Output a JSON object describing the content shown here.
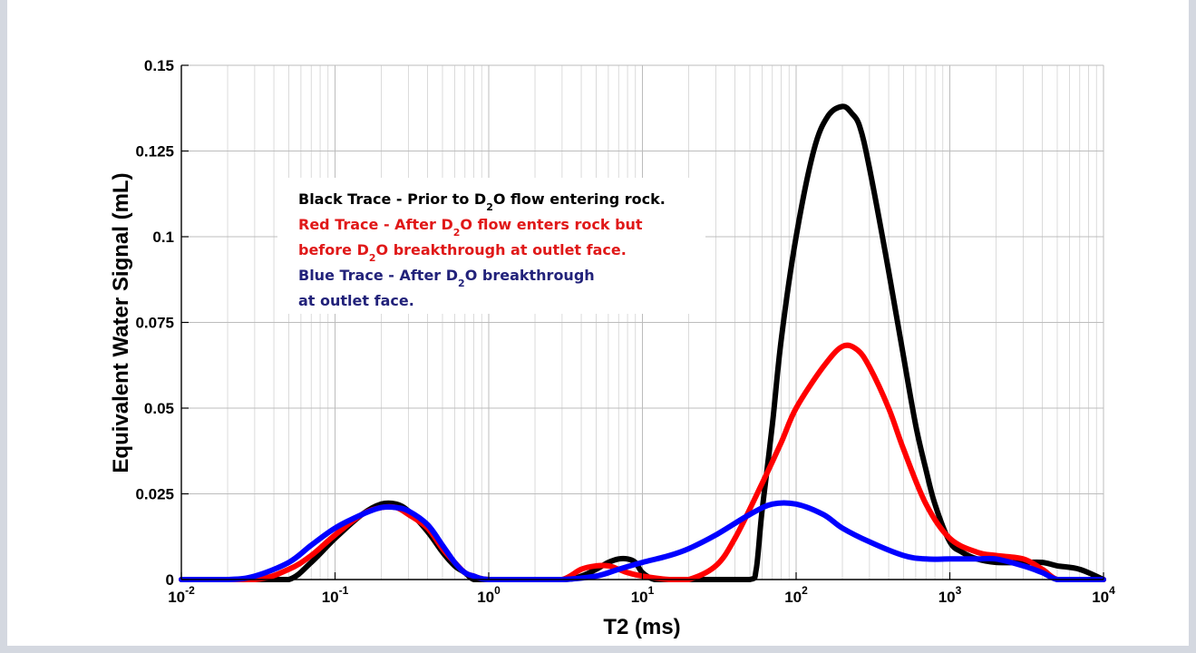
{
  "chart_data": {
    "type": "line",
    "title": "",
    "xlabel": "T2 (ms)",
    "ylabel": "Equivalent Water Signal (mL)",
    "xscale": "log",
    "xlim": [
      0.01,
      10000
    ],
    "ylim": [
      0,
      0.15
    ],
    "grid": true,
    "y_ticks": [
      {
        "value": 0,
        "label": "0"
      },
      {
        "value": 0.025,
        "label": "0.025"
      },
      {
        "value": 0.05,
        "label": "0.05"
      },
      {
        "value": 0.075,
        "label": "0.075"
      },
      {
        "value": 0.1,
        "label": "0.1"
      },
      {
        "value": 0.125,
        "label": "0.125"
      },
      {
        "value": 0.15,
        "label": "0.15"
      }
    ],
    "x_ticks": [
      {
        "value": 0.01,
        "base": "10",
        "exp": "-2"
      },
      {
        "value": 0.1,
        "base": "10",
        "exp": "-1"
      },
      {
        "value": 1,
        "base": "10",
        "exp": "0"
      },
      {
        "value": 10,
        "base": "10",
        "exp": "1"
      },
      {
        "value": 100,
        "base": "10",
        "exp": "2"
      },
      {
        "value": 1000,
        "base": "10",
        "exp": "3"
      },
      {
        "value": 10000,
        "base": "10",
        "exp": "4"
      }
    ],
    "legend": {
      "placement": "upper-left",
      "lines": [
        {
          "color": "#000000",
          "segments": [
            {
              "text": "Black Trace - Prior to D"
            },
            {
              "text": "2",
              "sub": true
            },
            {
              "text": "O flow entering rock."
            }
          ]
        },
        {
          "color": "#e01818",
          "segments": [
            {
              "text": "Red Trace - After D"
            },
            {
              "text": "2",
              "sub": true
            },
            {
              "text": "O flow enters rock but"
            }
          ]
        },
        {
          "color": "#e01818",
          "segments": [
            {
              "text": "before D"
            },
            {
              "text": "2",
              "sub": true
            },
            {
              "text": "O breakthrough at outlet face."
            }
          ]
        },
        {
          "color": "#22227a",
          "segments": [
            {
              "text": "Blue Trace - After D"
            },
            {
              "text": "2",
              "sub": true
            },
            {
              "text": "O breakthrough"
            }
          ]
        },
        {
          "color": "#22227a",
          "segments": [
            {
              "text": "at outlet face."
            }
          ]
        }
      ]
    },
    "series": [
      {
        "color": "#000000",
        "x": [
          0.01,
          0.03,
          0.05,
          0.07,
          0.1,
          0.15,
          0.2,
          0.25,
          0.3,
          0.4,
          0.5,
          0.6,
          0.7,
          0.8,
          1,
          3,
          4,
          5,
          6,
          7,
          8,
          9,
          10,
          12,
          15,
          20,
          30,
          50,
          55,
          60,
          70,
          80,
          100,
          130,
          160,
          200,
          230,
          260,
          300,
          400,
          500,
          600,
          700,
          800,
          1000,
          1200,
          1500,
          2000,
          3000,
          4000,
          5000,
          7000,
          10000
        ],
        "y": [
          0,
          0,
          0,
          0.005,
          0.012,
          0.019,
          0.022,
          0.022,
          0.02,
          0.014,
          0.008,
          0.004,
          0.002,
          0,
          0,
          0,
          0.001,
          0.003,
          0.005,
          0.006,
          0.006,
          0.005,
          0.002,
          0,
          0,
          0,
          0,
          0,
          0.003,
          0.02,
          0.045,
          0.07,
          0.1,
          0.125,
          0.135,
          0.138,
          0.136,
          0.132,
          0.12,
          0.09,
          0.065,
          0.045,
          0.032,
          0.022,
          0.011,
          0.008,
          0.006,
          0.005,
          0.005,
          0.005,
          0.004,
          0.003,
          0
        ]
      },
      {
        "color": "#ff0000",
        "x": [
          0.01,
          0.03,
          0.05,
          0.07,
          0.1,
          0.15,
          0.2,
          0.25,
          0.3,
          0.4,
          0.5,
          0.6,
          0.7,
          0.8,
          1,
          2,
          3,
          4,
          5,
          6,
          7,
          8,
          10,
          15,
          20,
          30,
          40,
          60,
          80,
          100,
          150,
          200,
          250,
          300,
          400,
          500,
          700,
          1000,
          1500,
          2000,
          3000,
          4000,
          5000,
          7000,
          10000
        ],
        "y": [
          0,
          0,
          0.003,
          0.007,
          0.013,
          0.019,
          0.021,
          0.021,
          0.019,
          0.015,
          0.009,
          0.005,
          0.002,
          0.001,
          0,
          0,
          0,
          0.003,
          0.004,
          0.004,
          0.003,
          0.002,
          0.001,
          0,
          0,
          0.004,
          0.012,
          0.028,
          0.04,
          0.05,
          0.062,
          0.068,
          0.067,
          0.062,
          0.05,
          0.038,
          0.022,
          0.012,
          0.008,
          0.007,
          0.006,
          0.003,
          0,
          0,
          0
        ]
      },
      {
        "color": "#0000ff",
        "x": [
          0.01,
          0.02,
          0.03,
          0.05,
          0.07,
          0.1,
          0.15,
          0.2,
          0.25,
          0.3,
          0.4,
          0.5,
          0.6,
          0.7,
          0.8,
          1,
          2,
          3,
          5,
          7,
          10,
          15,
          20,
          30,
          50,
          70,
          100,
          150,
          200,
          300,
          500,
          700,
          1000,
          1500,
          2000,
          3000,
          4000,
          5000,
          7000,
          10000
        ],
        "y": [
          0,
          0,
          0.001,
          0.005,
          0.01,
          0.015,
          0.019,
          0.021,
          0.021,
          0.02,
          0.016,
          0.01,
          0.005,
          0.002,
          0.001,
          0,
          0,
          0,
          0.001,
          0.003,
          0.005,
          0.007,
          0.009,
          0.013,
          0.019,
          0.022,
          0.022,
          0.019,
          0.015,
          0.011,
          0.007,
          0.006,
          0.006,
          0.006,
          0.006,
          0.004,
          0.002,
          0,
          0,
          0
        ]
      }
    ]
  }
}
